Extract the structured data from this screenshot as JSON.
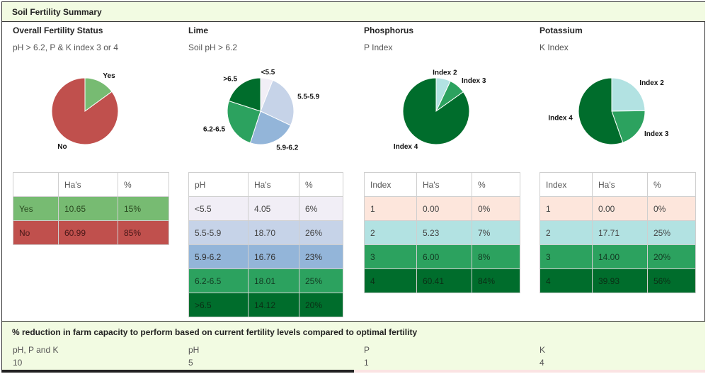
{
  "header": {
    "title": "Soil Fertility Summary"
  },
  "columns": [
    {
      "key": "overall",
      "heading": "Overall Fertility Status",
      "subheading": "pH > 6.2, P & K index 3 or 4",
      "table": {
        "headers": [
          "",
          "Ha's",
          "%"
        ],
        "rows": [
          {
            "cells": [
              "Yes",
              "10.65",
              "15%"
            ],
            "bg": "#77bb72",
            "fg": "#2a4a20"
          },
          {
            "cells": [
              "No",
              "60.99",
              "85%"
            ],
            "bg": "#c0504d",
            "fg": "#4a1818"
          }
        ]
      }
    },
    {
      "key": "lime",
      "heading": "Lime",
      "subheading": "Soil pH > 6.2",
      "table": {
        "headers": [
          "pH",
          "Ha's",
          "%"
        ],
        "rows": [
          {
            "cells": [
              "<5.5",
              "4.05",
              "6%"
            ],
            "bg": "#f1eef6",
            "fg": "#444444"
          },
          {
            "cells": [
              "5.5-5.9",
              "18.70",
              "26%"
            ],
            "bg": "#c6d3e8",
            "fg": "#444444"
          },
          {
            "cells": [
              "5.9-6.2",
              "16.76",
              "23%"
            ],
            "bg": "#93b5d9",
            "fg": "#333333"
          },
          {
            "cells": [
              "6.2-6.5",
              "18.01",
              "25%"
            ],
            "bg": "#2ca25f",
            "fg": "#123a22"
          },
          {
            "cells": [
              ">6.5",
              "14.12",
              "20%"
            ],
            "bg": "#006d2c",
            "fg": "#0a2e15"
          }
        ]
      }
    },
    {
      "key": "phosphorus",
      "heading": "Phosphorus",
      "subheading": "P Index",
      "table": {
        "headers": [
          "Index",
          "Ha's",
          "%"
        ],
        "rows": [
          {
            "cells": [
              "1",
              "0.00",
              "0%"
            ],
            "bg": "#fde6dc",
            "fg": "#444444"
          },
          {
            "cells": [
              "2",
              "5.23",
              "7%"
            ],
            "bg": "#b2e2e2",
            "fg": "#444444"
          },
          {
            "cells": [
              "3",
              "6.00",
              "8%"
            ],
            "bg": "#2ca25f",
            "fg": "#123a22"
          },
          {
            "cells": [
              "4",
              "60.41",
              "84%"
            ],
            "bg": "#006d2c",
            "fg": "#0a2e15"
          }
        ]
      }
    },
    {
      "key": "potassium",
      "heading": "Potassium",
      "subheading": "K Index",
      "table": {
        "headers": [
          "Index",
          "Ha's",
          "%"
        ],
        "rows": [
          {
            "cells": [
              "1",
              "0.00",
              "0%"
            ],
            "bg": "#fde6dc",
            "fg": "#444444"
          },
          {
            "cells": [
              "2",
              "17.71",
              "25%"
            ],
            "bg": "#b2e2e2",
            "fg": "#444444"
          },
          {
            "cells": [
              "3",
              "14.00",
              "20%"
            ],
            "bg": "#2ca25f",
            "fg": "#123a22"
          },
          {
            "cells": [
              "4",
              "39.93",
              "56%"
            ],
            "bg": "#006d2c",
            "fg": "#0a2e15"
          }
        ]
      }
    }
  ],
  "chart_data": [
    {
      "type": "pie",
      "title": "",
      "labels": [
        "Yes",
        "No"
      ],
      "values": [
        15,
        85
      ],
      "colors": [
        "#77bb72",
        "#c0504d"
      ]
    },
    {
      "type": "pie",
      "title": "",
      "labels": [
        "<5.5",
        "5.5-5.9",
        "5.9-6.2",
        "6.2-6.5",
        ">6.5"
      ],
      "values": [
        6,
        26,
        23,
        25,
        20
      ],
      "colors": [
        "#f1eef6",
        "#c6d3e8",
        "#93b5d9",
        "#2ca25f",
        "#006d2c"
      ]
    },
    {
      "type": "pie",
      "title": "",
      "labels": [
        "Index 2",
        "Index 3",
        "Index 4"
      ],
      "values": [
        7,
        8,
        84
      ],
      "colors": [
        "#b2e2e2",
        "#2ca25f",
        "#006d2c"
      ]
    },
    {
      "type": "pie",
      "title": "",
      "labels": [
        "Index 2",
        "Index 3",
        "Index 4"
      ],
      "values": [
        25,
        20,
        56
      ],
      "colors": [
        "#b2e2e2",
        "#2ca25f",
        "#006d2c"
      ]
    }
  ],
  "reduction": {
    "title": "% reduction in farm capacity to perform based on current fertility levels compared to optimal fertility",
    "items": [
      {
        "label": "pH, P and K",
        "value": "10"
      },
      {
        "label": "pH",
        "value": "5"
      },
      {
        "label": "P",
        "value": "1"
      },
      {
        "label": "K",
        "value": "4"
      }
    ]
  }
}
